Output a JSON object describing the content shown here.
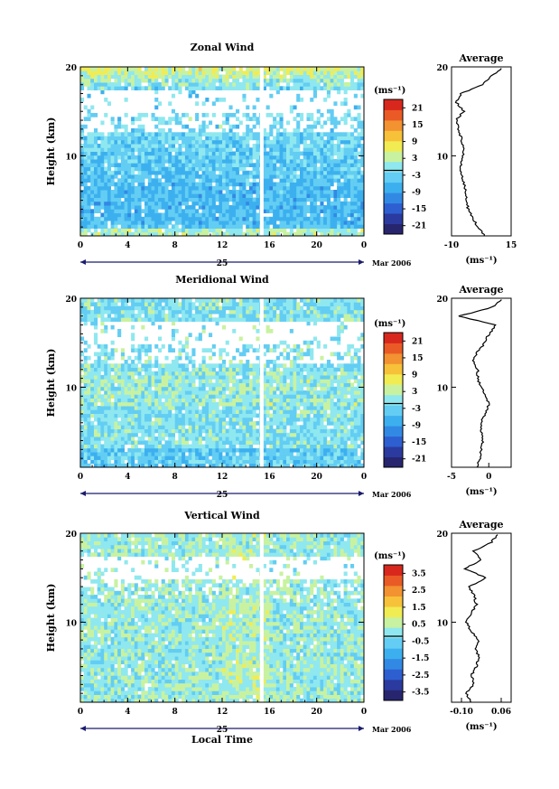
{
  "figure": {
    "date_label": "Mar 2006",
    "day_label": "25",
    "xlabel": "Local Time"
  },
  "chart_data": [
    {
      "type": "heatmap",
      "title": "Zonal Wind",
      "ylabel": "Height (km)",
      "xlabel": "Local Time",
      "x_ticks": [
        "0",
        "4",
        "8",
        "12",
        "16",
        "20",
        "0"
      ],
      "y_ticks": [
        "10",
        "20"
      ],
      "xlim": [
        0,
        24
      ],
      "ylim": [
        1,
        20
      ],
      "colorbar": {
        "unit": "(ms⁻¹)",
        "ticks": [
          "21",
          "15",
          "9",
          "3",
          "-3",
          "-9",
          "-15",
          "-21"
        ],
        "range": [
          -24,
          24
        ]
      },
      "fields": {
        "base": -4,
        "top": 20.5
      },
      "average": {
        "title": "Average",
        "xlim": [
          -10,
          15
        ],
        "x_ticks": [
          "-10",
          "15"
        ],
        "y_ticks": [
          "10",
          "20"
        ],
        "unit": "(ms⁻¹)",
        "height": [
          1,
          2,
          3,
          4,
          5,
          6,
          7,
          8,
          9,
          10,
          11,
          12,
          13,
          14,
          15,
          16,
          17,
          18,
          19,
          20
        ],
        "value": [
          4,
          1,
          -1,
          -3,
          -4,
          -4,
          -5,
          -6,
          -6,
          -5,
          -5,
          -6,
          -7,
          -8,
          -5,
          -8,
          -6,
          3,
          7,
          12
        ]
      }
    },
    {
      "type": "heatmap",
      "title": "Meridional Wind",
      "ylabel": "Height (km)",
      "xlabel": "Local Time",
      "x_ticks": [
        "0",
        "4",
        "8",
        "12",
        "16",
        "20",
        "0"
      ],
      "y_ticks": [
        "10",
        "20"
      ],
      "xlim": [
        0,
        24
      ],
      "ylim": [
        1,
        20
      ],
      "colorbar": {
        "unit": "(ms⁻¹)",
        "ticks": [
          "21",
          "15",
          "9",
          "3",
          "-3",
          "-9",
          "-15",
          "-21"
        ],
        "range": [
          -24,
          24
        ]
      },
      "fields": {
        "base": -1,
        "top": 20.5
      },
      "average": {
        "title": "Average",
        "xlim": [
          -5,
          3
        ],
        "x_ticks": [
          "-5",
          "0"
        ],
        "y_ticks": [
          "10",
          "20"
        ],
        "unit": "(ms⁻¹)",
        "height": [
          1,
          2,
          3,
          4,
          5,
          6,
          7,
          8,
          9,
          10,
          11,
          12,
          13,
          14,
          15,
          16,
          17,
          18,
          19,
          20
        ],
        "value": [
          -1.5,
          -1.2,
          -1,
          -0.8,
          -1,
          -1,
          -0.5,
          0,
          -0.3,
          -1,
          -1.5,
          -1.5,
          -2,
          -1.5,
          -0.5,
          0,
          1,
          -4,
          0.5,
          2
        ]
      }
    },
    {
      "type": "heatmap",
      "title": "Vertical Wind",
      "ylabel": "Height (km)",
      "xlabel": "Local Time",
      "x_ticks": [
        "0",
        "4",
        "8",
        "12",
        "16",
        "20",
        "0"
      ],
      "y_ticks": [
        "10",
        "20"
      ],
      "xlim": [
        0,
        24
      ],
      "ylim": [
        1,
        20
      ],
      "colorbar": {
        "unit": "(ms⁻¹)",
        "ticks": [
          "3.5",
          "2.5",
          "1.5",
          "0.5",
          "-0.5",
          "-1.5",
          "-2.5",
          "-3.5"
        ],
        "range": [
          -4,
          4
        ]
      },
      "fields": {
        "base": 0.1,
        "top": 20.5
      },
      "average": {
        "title": "Average",
        "xlim": [
          -0.14,
          0.1
        ],
        "x_ticks": [
          "-0.10",
          "0.06"
        ],
        "y_ticks": [
          "10",
          "20"
        ],
        "unit": "(ms⁻¹)",
        "height": [
          1,
          2,
          3,
          4,
          5,
          6,
          7,
          8,
          9,
          10,
          11,
          12,
          13,
          14,
          15,
          16,
          17,
          18,
          19,
          20
        ],
        "value": [
          -0.06,
          -0.08,
          -0.05,
          -0.06,
          -0.04,
          -0.03,
          -0.04,
          -0.03,
          -0.06,
          -0.08,
          -0.06,
          -0.04,
          -0.05,
          -0.07,
          0,
          -0.09,
          -0.02,
          -0.05,
          0.02,
          0.05
        ]
      }
    }
  ]
}
